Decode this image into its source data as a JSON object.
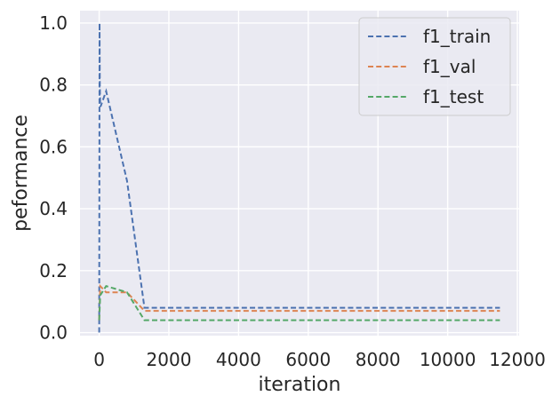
{
  "chart_data": {
    "type": "line",
    "title": "",
    "xlabel": "iteration",
    "ylabel": "peformance",
    "xlim": [
      -550,
      12050
    ],
    "ylim": [
      -0.01,
      1.04
    ],
    "xticks": [
      0,
      2000,
      4000,
      6000,
      8000,
      10000,
      12000
    ],
    "yticks": [
      0.0,
      0.2,
      0.4,
      0.6,
      0.8,
      1.0
    ],
    "xtick_labels": [
      "0",
      "2000",
      "4000",
      "6000",
      "8000",
      "10000",
      "12000"
    ],
    "ytick_labels": [
      "0.0",
      "0.2",
      "0.4",
      "0.6",
      "0.8",
      "1.0"
    ],
    "grid": true,
    "background": "#eaeaf2",
    "legend_position": "top-right",
    "series": [
      {
        "name": "f1_train",
        "color": "#4c72b0",
        "style": "dashed",
        "x": [
          0,
          10,
          20,
          30,
          40,
          200,
          800,
          1300,
          11500
        ],
        "y": [
          0.0,
          1.0,
          0.8,
          0.74,
          0.73,
          0.78,
          0.49,
          0.08,
          0.08
        ]
      },
      {
        "name": "f1_val",
        "color": "#dd8452",
        "style": "dashed",
        "x": [
          0,
          30,
          200,
          800,
          1300,
          11500
        ],
        "y": [
          0.04,
          0.15,
          0.13,
          0.13,
          0.07,
          0.07
        ]
      },
      {
        "name": "f1_test",
        "color": "#55a868",
        "style": "dashed",
        "x": [
          0,
          30,
          200,
          800,
          1300,
          11500
        ],
        "y": [
          0.04,
          0.12,
          0.15,
          0.13,
          0.04,
          0.04
        ]
      }
    ]
  }
}
